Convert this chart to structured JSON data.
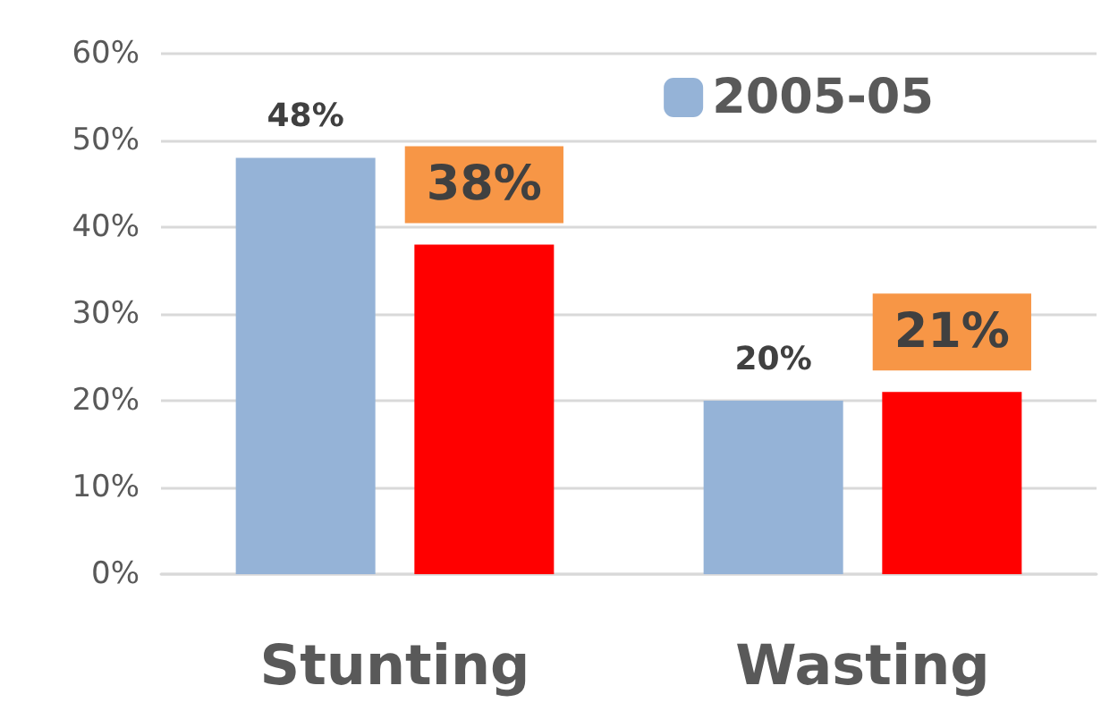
{
  "chart_data": {
    "type": "bar",
    "categories": [
      "Stunting",
      "Wasting"
    ],
    "series": [
      {
        "name": "2005-05",
        "color": "#95b3d7",
        "values": [
          48,
          20
        ],
        "value_labels": [
          "48%",
          "20%"
        ]
      },
      {
        "color": "#ff0000",
        "values": [
          38,
          21
        ],
        "value_labels": [
          "38%",
          "21%"
        ]
      }
    ],
    "ylim": [
      0,
      60
    ],
    "yticks": [
      {
        "value": 0,
        "label": "0%"
      },
      {
        "value": 10,
        "label": "10%"
      },
      {
        "value": 20,
        "label": "20%"
      },
      {
        "value": 30,
        "label": "30%"
      },
      {
        "value": 40,
        "label": "40%"
      },
      {
        "value": 50,
        "label": "50%"
      },
      {
        "value": 60,
        "label": "60%"
      }
    ],
    "grid": "y",
    "legend": "top right"
  }
}
